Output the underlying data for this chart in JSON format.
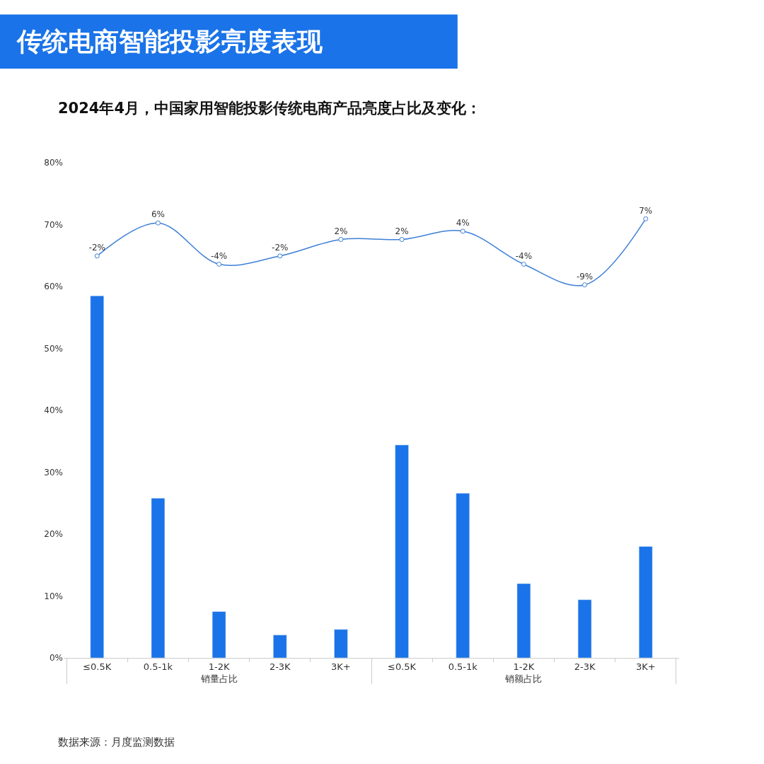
{
  "chart_data": {
    "type": "bar",
    "title": "传统电商智能投影亮度表现",
    "subtitle": "2024年4月，中国家用智能投影传统电商产品亮度占比及变化：",
    "categories": [
      "≤0.5K",
      "0.5-1k",
      "1-2K",
      "2-3K",
      "3K+",
      "≤0.5K",
      "0.5-1k",
      "1-2K",
      "2-3K",
      "3K+"
    ],
    "series": [
      {
        "color": "#1a73e8",
        "values": [
          58.5,
          25.8,
          7.5,
          3.7,
          4.6,
          34.4,
          26.6,
          12.0,
          9.4,
          18.0
        ]
      },
      {
        "type": "line",
        "axis": "y2",
        "color": "#3d7fd6",
        "marker": "circle",
        "values": [
          -2,
          6,
          -4,
          -2,
          2,
          2,
          4,
          -4,
          -9,
          7
        ],
        "value_labels": [
          "-2%",
          "6%",
          "-4%",
          "-2%",
          "2%",
          "2%",
          "4%",
          "-4%",
          "-9%",
          "7%"
        ]
      }
    ],
    "ylim": [
      0,
      80
    ],
    "yticks": [
      {
        "value": 0,
        "label": "0%"
      },
      {
        "value": 10,
        "label": "10%"
      },
      {
        "value": 20,
        "label": "20%"
      },
      {
        "value": 30,
        "label": "30%"
      },
      {
        "value": 40,
        "label": "40%"
      },
      {
        "value": 50,
        "label": "50%"
      },
      {
        "value": 60,
        "label": "60%"
      },
      {
        "value": 70,
        "label": "70%"
      },
      {
        "value": 80,
        "label": "80%"
      }
    ],
    "annotations": [
      "销量占比",
      "销额占比",
      "数据来源：月度监测数据"
    ]
  }
}
